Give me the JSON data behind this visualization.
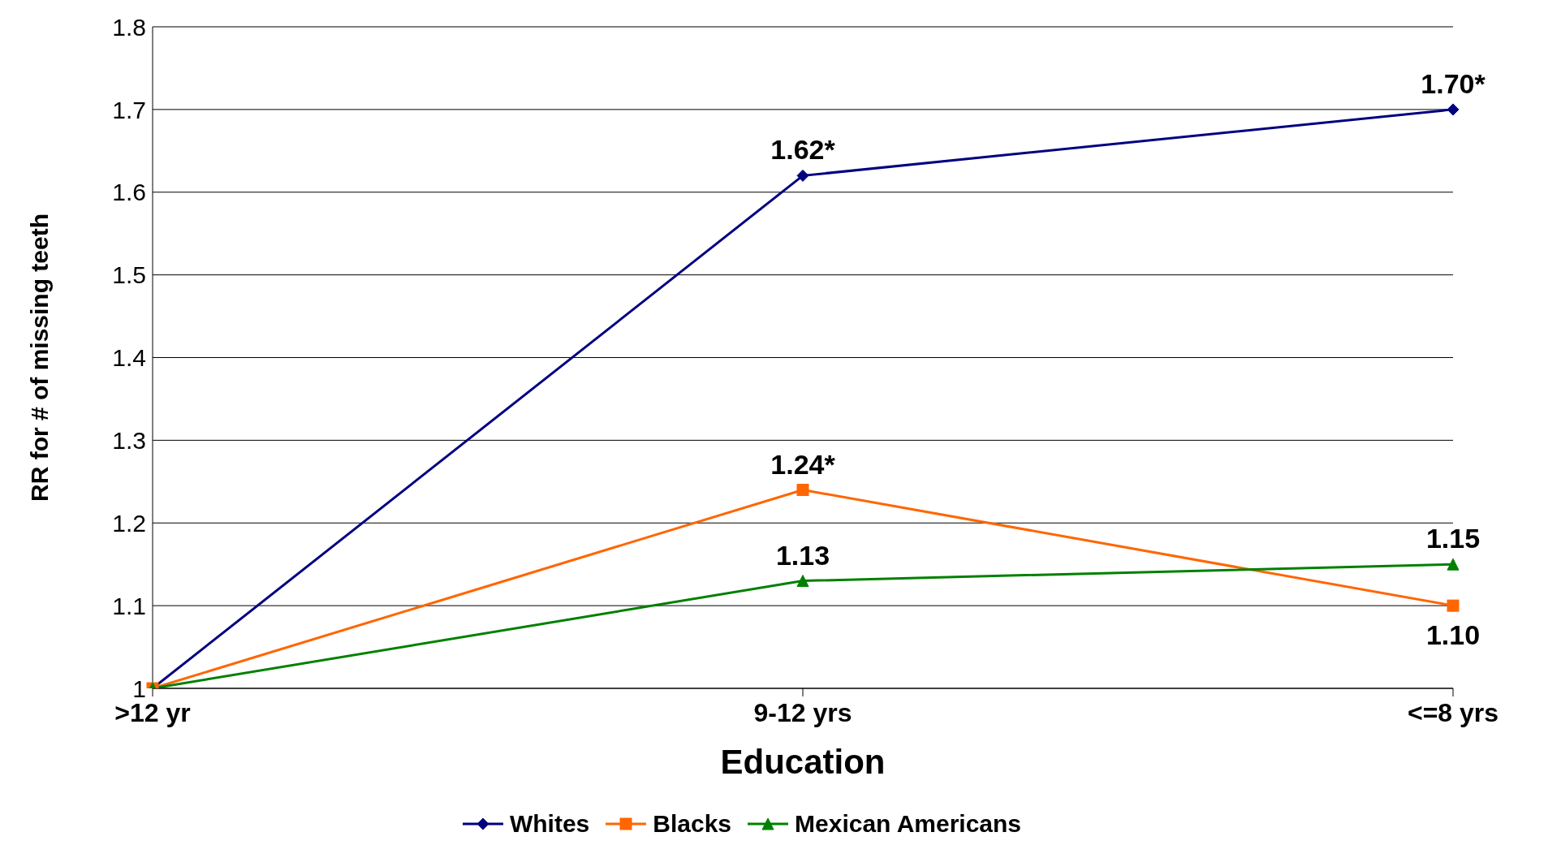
{
  "chart_data": {
    "type": "line",
    "xlabel": "Education",
    "ylabel": "RR for # of missing teeth",
    "categories": [
      ">12 yr",
      "9-12 yrs",
      "<=8 yrs"
    ],
    "series": [
      {
        "name": "Whites",
        "color": "#000080",
        "marker": "diamond",
        "values": [
          1,
          1.62,
          1.7
        ],
        "value_labels": [
          null,
          "1.62*",
          "1.70*"
        ]
      },
      {
        "name": "Blacks",
        "color": "#ff6600",
        "marker": "square",
        "values": [
          1,
          1.24,
          1.1
        ],
        "value_labels": [
          null,
          "1.24*",
          "1.10"
        ]
      },
      {
        "name": "Mexican Americans",
        "color": "#008000",
        "marker": "triangle",
        "values": [
          1,
          1.13,
          1.15
        ],
        "value_labels": [
          null,
          "1.13",
          "1.15"
        ]
      }
    ],
    "ylim": [
      1,
      1.8
    ],
    "yticks": [
      1,
      1.1,
      1.2,
      1.3,
      1.4,
      1.5,
      1.6,
      1.7,
      1.8
    ],
    "grid": "y",
    "legend": "bottom"
  }
}
